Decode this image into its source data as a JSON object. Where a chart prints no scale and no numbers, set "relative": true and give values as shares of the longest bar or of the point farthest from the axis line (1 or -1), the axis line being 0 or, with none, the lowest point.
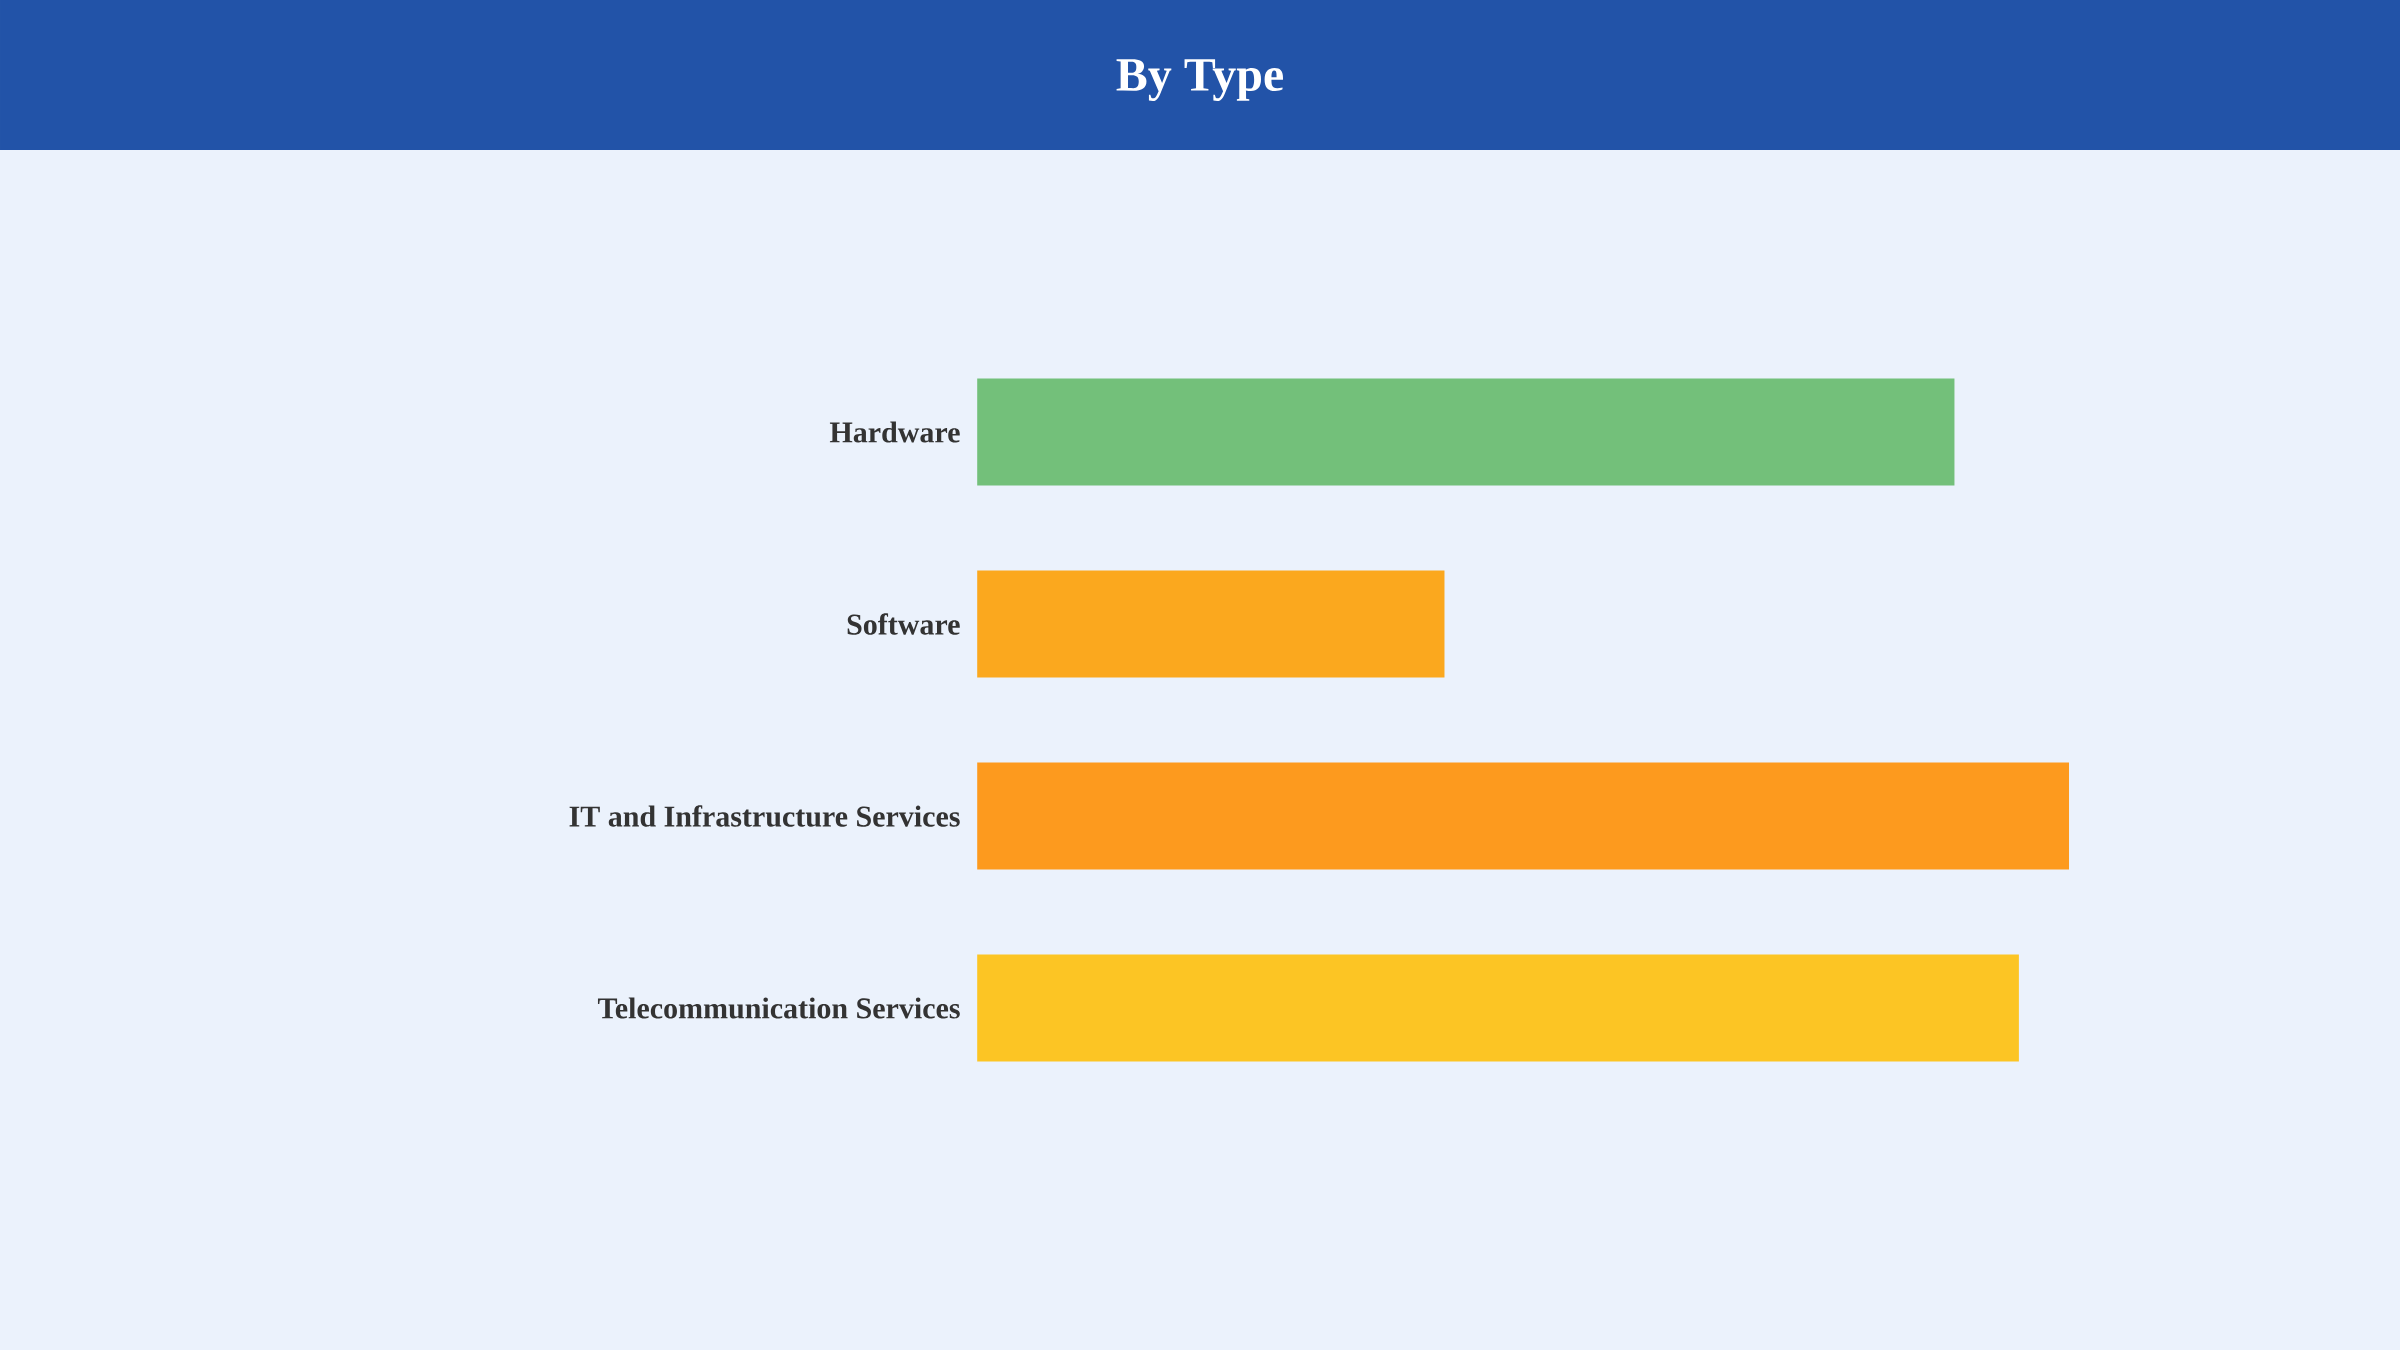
{
  "chart_data": {
    "type": "bar",
    "title": "By Type",
    "orientation": "horizontal",
    "relative": true,
    "categories": [
      "Hardware",
      "Software",
      "IT and Infrastructure Services",
      "Telecommunication Services"
    ],
    "values": [
      0.895,
      0.428,
      1,
      0.954
    ],
    "colors": [
      "#73c07a",
      "#fba81e",
      "#fd9a1e",
      "#fcc524"
    ]
  }
}
